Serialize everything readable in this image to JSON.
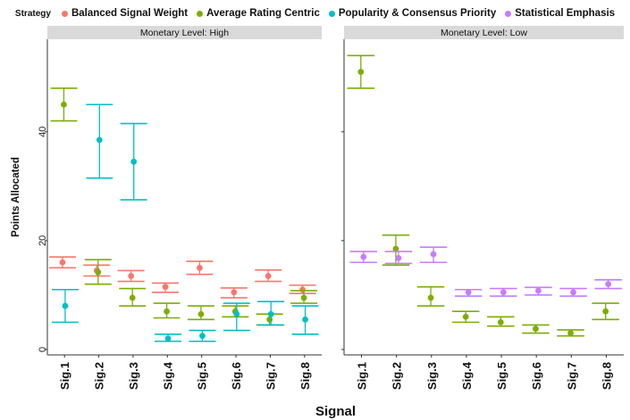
{
  "chart_data": {
    "type": "scatter",
    "subtype": "point-with-errorbars",
    "legend_title": "Strategy",
    "legend_position": "top",
    "xlabel": "Signal",
    "ylabel": "Points Allocated",
    "categories": [
      "Sig.1",
      "Sig.2",
      "Sig.3",
      "Sig.4",
      "Sig.5",
      "Sig.6",
      "Sig.7",
      "Sig.8"
    ],
    "ylim": [
      -1,
      57
    ],
    "yticks": [
      0,
      20,
      40
    ],
    "grid": false,
    "colors": {
      "Balanced Signal Weight": "#f8766d",
      "Average Rating Centric": "#7cae00",
      "Popularity & Consensus Priority": "#00bfc4",
      "Statistical Emphasis": "#c77cff"
    },
    "panels": [
      {
        "title": "Monetary Level: High",
        "series": [
          {
            "name": "Balanced Signal Weight",
            "values": [
              16.0,
              14.5,
              13.5,
              11.5,
              15.0,
              10.5,
              13.5,
              11.0
            ],
            "lower": [
              15.0,
              13.5,
              12.5,
              10.5,
              13.8,
              9.5,
              12.5,
              10.3
            ],
            "upper": [
              17.0,
              15.5,
              14.5,
              12.2,
              16.2,
              11.3,
              14.6,
              11.8
            ]
          },
          {
            "name": "Average Rating Centric",
            "values": [
              45.0,
              14.2,
              9.5,
              7.0,
              6.5,
              7.0,
              5.5,
              9.5
            ],
            "lower": [
              42.0,
              12.0,
              8.0,
              5.8,
              5.5,
              6.0,
              4.5,
              8.5
            ],
            "upper": [
              48.0,
              16.5,
              11.2,
              8.5,
              8.0,
              8.0,
              6.5,
              10.8
            ]
          },
          {
            "name": "Popularity & Consensus Priority",
            "values": [
              8.0,
              38.5,
              34.5,
              2.0,
              2.5,
              6.5,
              6.5,
              5.5
            ],
            "lower": [
              5.0,
              31.5,
              27.5,
              1.5,
              1.5,
              3.5,
              4.5,
              2.8
            ],
            "upper": [
              11.0,
              45.0,
              41.5,
              2.8,
              3.5,
              8.5,
              8.8,
              8.0
            ]
          }
        ]
      },
      {
        "title": "Monetary Level: Low",
        "series": [
          {
            "name": "Average Rating Centric",
            "values": [
              51.0,
              18.5,
              9.5,
              6.0,
              5.0,
              3.8,
              3.0,
              7.0
            ],
            "lower": [
              48.0,
              15.5,
              8.0,
              5.0,
              4.3,
              3.0,
              2.5,
              5.5
            ],
            "upper": [
              54.0,
              21.0,
              11.5,
              7.0,
              6.0,
              4.5,
              3.6,
              8.5
            ]
          },
          {
            "name": "Statistical Emphasis",
            "values": [
              17.0,
              16.8,
              17.5,
              10.5,
              10.5,
              10.8,
              10.5,
              12.0
            ],
            "lower": [
              16.0,
              15.8,
              16.0,
              9.8,
              9.8,
              10.0,
              9.8,
              11.2
            ],
            "upper": [
              18.0,
              18.0,
              18.8,
              11.0,
              11.2,
              11.4,
              11.2,
              12.8
            ]
          }
        ]
      }
    ]
  }
}
